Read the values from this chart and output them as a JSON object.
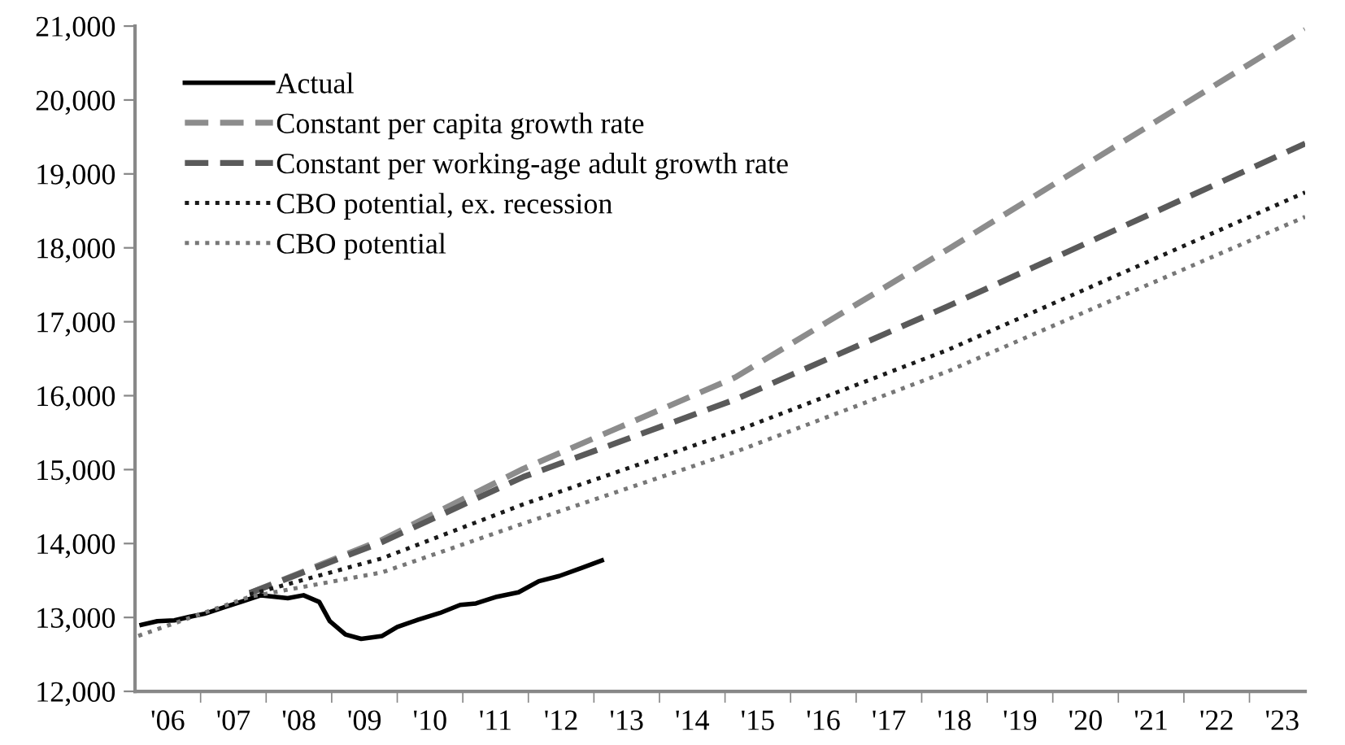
{
  "chart_data": {
    "type": "line",
    "xlim": [
      2005.5,
      2023.35
    ],
    "xticks": [
      {
        "value": 2006,
        "label": "'06"
      },
      {
        "value": 2007,
        "label": "'07"
      },
      {
        "value": 2008,
        "label": "'08"
      },
      {
        "value": 2009,
        "label": "'09"
      },
      {
        "value": 2010,
        "label": "'10"
      },
      {
        "value": 2011,
        "label": "'11"
      },
      {
        "value": 2012,
        "label": "'12"
      },
      {
        "value": 2013,
        "label": "'13"
      },
      {
        "value": 2014,
        "label": "'14"
      },
      {
        "value": 2015,
        "label": "'15"
      },
      {
        "value": 2016,
        "label": "'16"
      },
      {
        "value": 2017,
        "label": "'17"
      },
      {
        "value": 2018,
        "label": "'18"
      },
      {
        "value": 2019,
        "label": "'19"
      },
      {
        "value": 2020,
        "label": "'20"
      },
      {
        "value": 2021,
        "label": "'21"
      },
      {
        "value": 2022,
        "label": "'22"
      },
      {
        "value": 2023,
        "label": "'23"
      },
      {
        "value": 2006.5,
        "label": null
      },
      {
        "value": 2007.5,
        "label": null
      },
      {
        "value": 2008.5,
        "label": null
      },
      {
        "value": 2009.5,
        "label": null
      },
      {
        "value": 2010.5,
        "label": null
      },
      {
        "value": 2011.5,
        "label": null
      },
      {
        "value": 2012.5,
        "label": null
      },
      {
        "value": 2013.5,
        "label": null
      },
      {
        "value": 2014.5,
        "label": null
      },
      {
        "value": 2015.5,
        "label": null
      },
      {
        "value": 2016.5,
        "label": null
      },
      {
        "value": 2017.5,
        "label": null
      },
      {
        "value": 2018.5,
        "label": null
      },
      {
        "value": 2019.5,
        "label": null
      },
      {
        "value": 2020.5,
        "label": null
      },
      {
        "value": 2021.5,
        "label": null
      },
      {
        "value": 2022.5,
        "label": null
      }
    ],
    "ylim": [
      12000,
      21000
    ],
    "yticks": [
      {
        "value": 12000,
        "label": "12,000"
      },
      {
        "value": 13000,
        "label": "13,000"
      },
      {
        "value": 14000,
        "label": "14,000"
      },
      {
        "value": 15000,
        "label": "15,000"
      },
      {
        "value": 16000,
        "label": "16,000"
      },
      {
        "value": 17000,
        "label": "17,000"
      },
      {
        "value": 18000,
        "label": "18,000"
      },
      {
        "value": 19000,
        "label": "19,000"
      },
      {
        "value": 20000,
        "label": "20,000"
      },
      {
        "value": 21000,
        "label": "21,000"
      }
    ],
    "grid": false,
    "legend": "top left",
    "series": [
      {
        "name": "Actual",
        "color": "#000000",
        "line_style": "solid",
        "x": [
          2005.6,
          2005.84,
          2006.1,
          2006.34,
          2006.56,
          2006.87,
          2007.15,
          2007.42,
          2007.63,
          2007.83,
          2008.07,
          2008.31,
          2008.47,
          2008.71,
          2008.95,
          2009.27,
          2009.5,
          2009.82,
          2010.15,
          2010.46,
          2010.7,
          2011.02,
          2011.35,
          2011.66,
          2011.97,
          2012.31,
          2012.62
        ],
        "values": [
          12900,
          12950,
          12960,
          13010,
          13050,
          13140,
          13220,
          13300,
          13280,
          13260,
          13300,
          13210,
          12950,
          12770,
          12710,
          12750,
          12870,
          12970,
          13060,
          13170,
          13190,
          13280,
          13340,
          13490,
          13560,
          13670,
          13770
        ]
      },
      {
        "name": "Constant per capita growth rate",
        "color": "#8c8c8c",
        "line_style": "dashed",
        "x": [
          2007.25,
          2009.27,
          2011.42,
          2014.66,
          2017.9,
          2023.35
        ],
        "values": [
          13330,
          14050,
          15010,
          16250,
          17980,
          20950
        ]
      },
      {
        "name": "Constant per working-age adult growth rate",
        "color": "#5a5a5a",
        "line_style": "dashed",
        "x": [
          2007.25,
          2009.27,
          2011.42,
          2014.66,
          2017.9,
          2023.35
        ],
        "values": [
          13330,
          14020,
          14900,
          15950,
          17210,
          19410
        ]
      },
      {
        "name": "CBO potential, ex. recession",
        "color": "#1a1a1a",
        "line_style": "dotted",
        "x": [
          2007.25,
          2009.27,
          2011.42,
          2014.66,
          2017.9,
          2023.35
        ],
        "values": [
          13310,
          13800,
          14530,
          15520,
          16620,
          18750
        ]
      },
      {
        "name": "CBO potential",
        "color": "#777777",
        "line_style": "dotted",
        "x": [
          2005.55,
          2007.25,
          2009.27,
          2011.42,
          2014.66,
          2017.9,
          2023.35
        ],
        "values": [
          12750,
          13280,
          13610,
          14270,
          15240,
          16330,
          18420
        ]
      }
    ]
  }
}
